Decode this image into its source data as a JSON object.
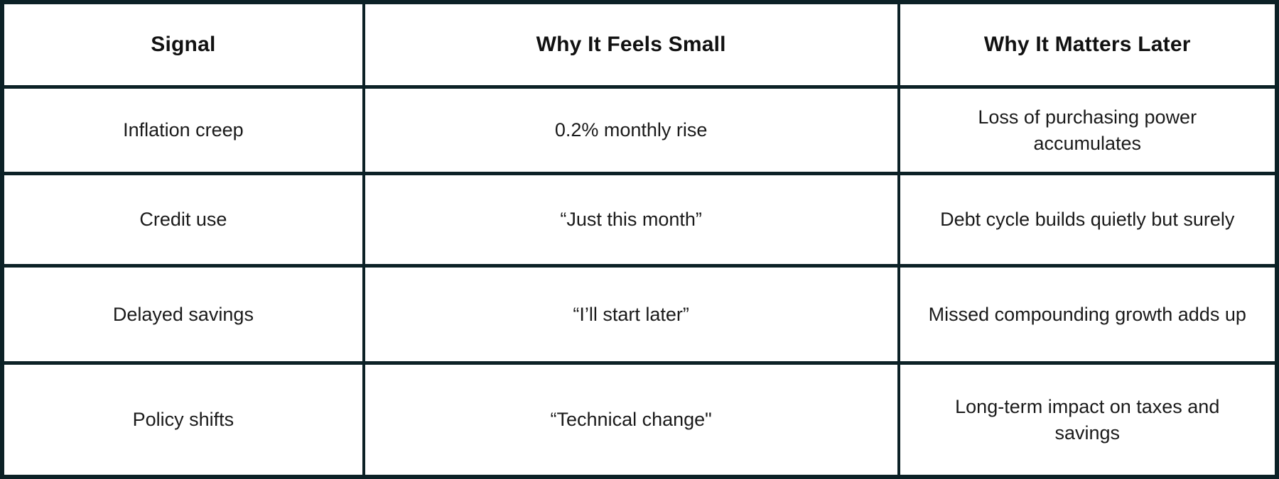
{
  "colors": {
    "border": "#0c2126",
    "background": "#ffffff",
    "header_text": "#111111",
    "body_text": "#1a1a1a"
  },
  "table": {
    "headers": [
      "Signal",
      "Why It Feels Small",
      "Why It Matters Later"
    ],
    "rows": [
      [
        "Inflation creep",
        "0.2% monthly rise",
        "Loss of purchasing power\naccumulates"
      ],
      [
        "Credit use",
        "“Just this month”",
        "Debt cycle builds quietly but surely"
      ],
      [
        "Delayed savings",
        "“I’ll start later”",
        "Missed compounding growth adds up"
      ],
      [
        "Policy shifts",
        "“Technical change\"",
        "Long-term impact on taxes and\nsavings"
      ]
    ]
  },
  "chart_data": {
    "type": "table",
    "columns": [
      "Signal",
      "Why It Feels Small",
      "Why It Matters Later"
    ],
    "rows": [
      [
        "Inflation creep",
        "0.2% monthly rise",
        "Loss of purchasing power accumulates"
      ],
      [
        "Credit use",
        "“Just this month”",
        "Debt cycle builds quietly but surely"
      ],
      [
        "Delayed savings",
        "“I’ll start later”",
        "Missed compounding growth adds up"
      ],
      [
        "Policy shifts",
        "“Technical change\"",
        "Long-term impact on taxes and savings"
      ]
    ],
    "title": "",
    "layout": {
      "grid": true,
      "header_row_bold": true,
      "text_align": "center"
    }
  }
}
